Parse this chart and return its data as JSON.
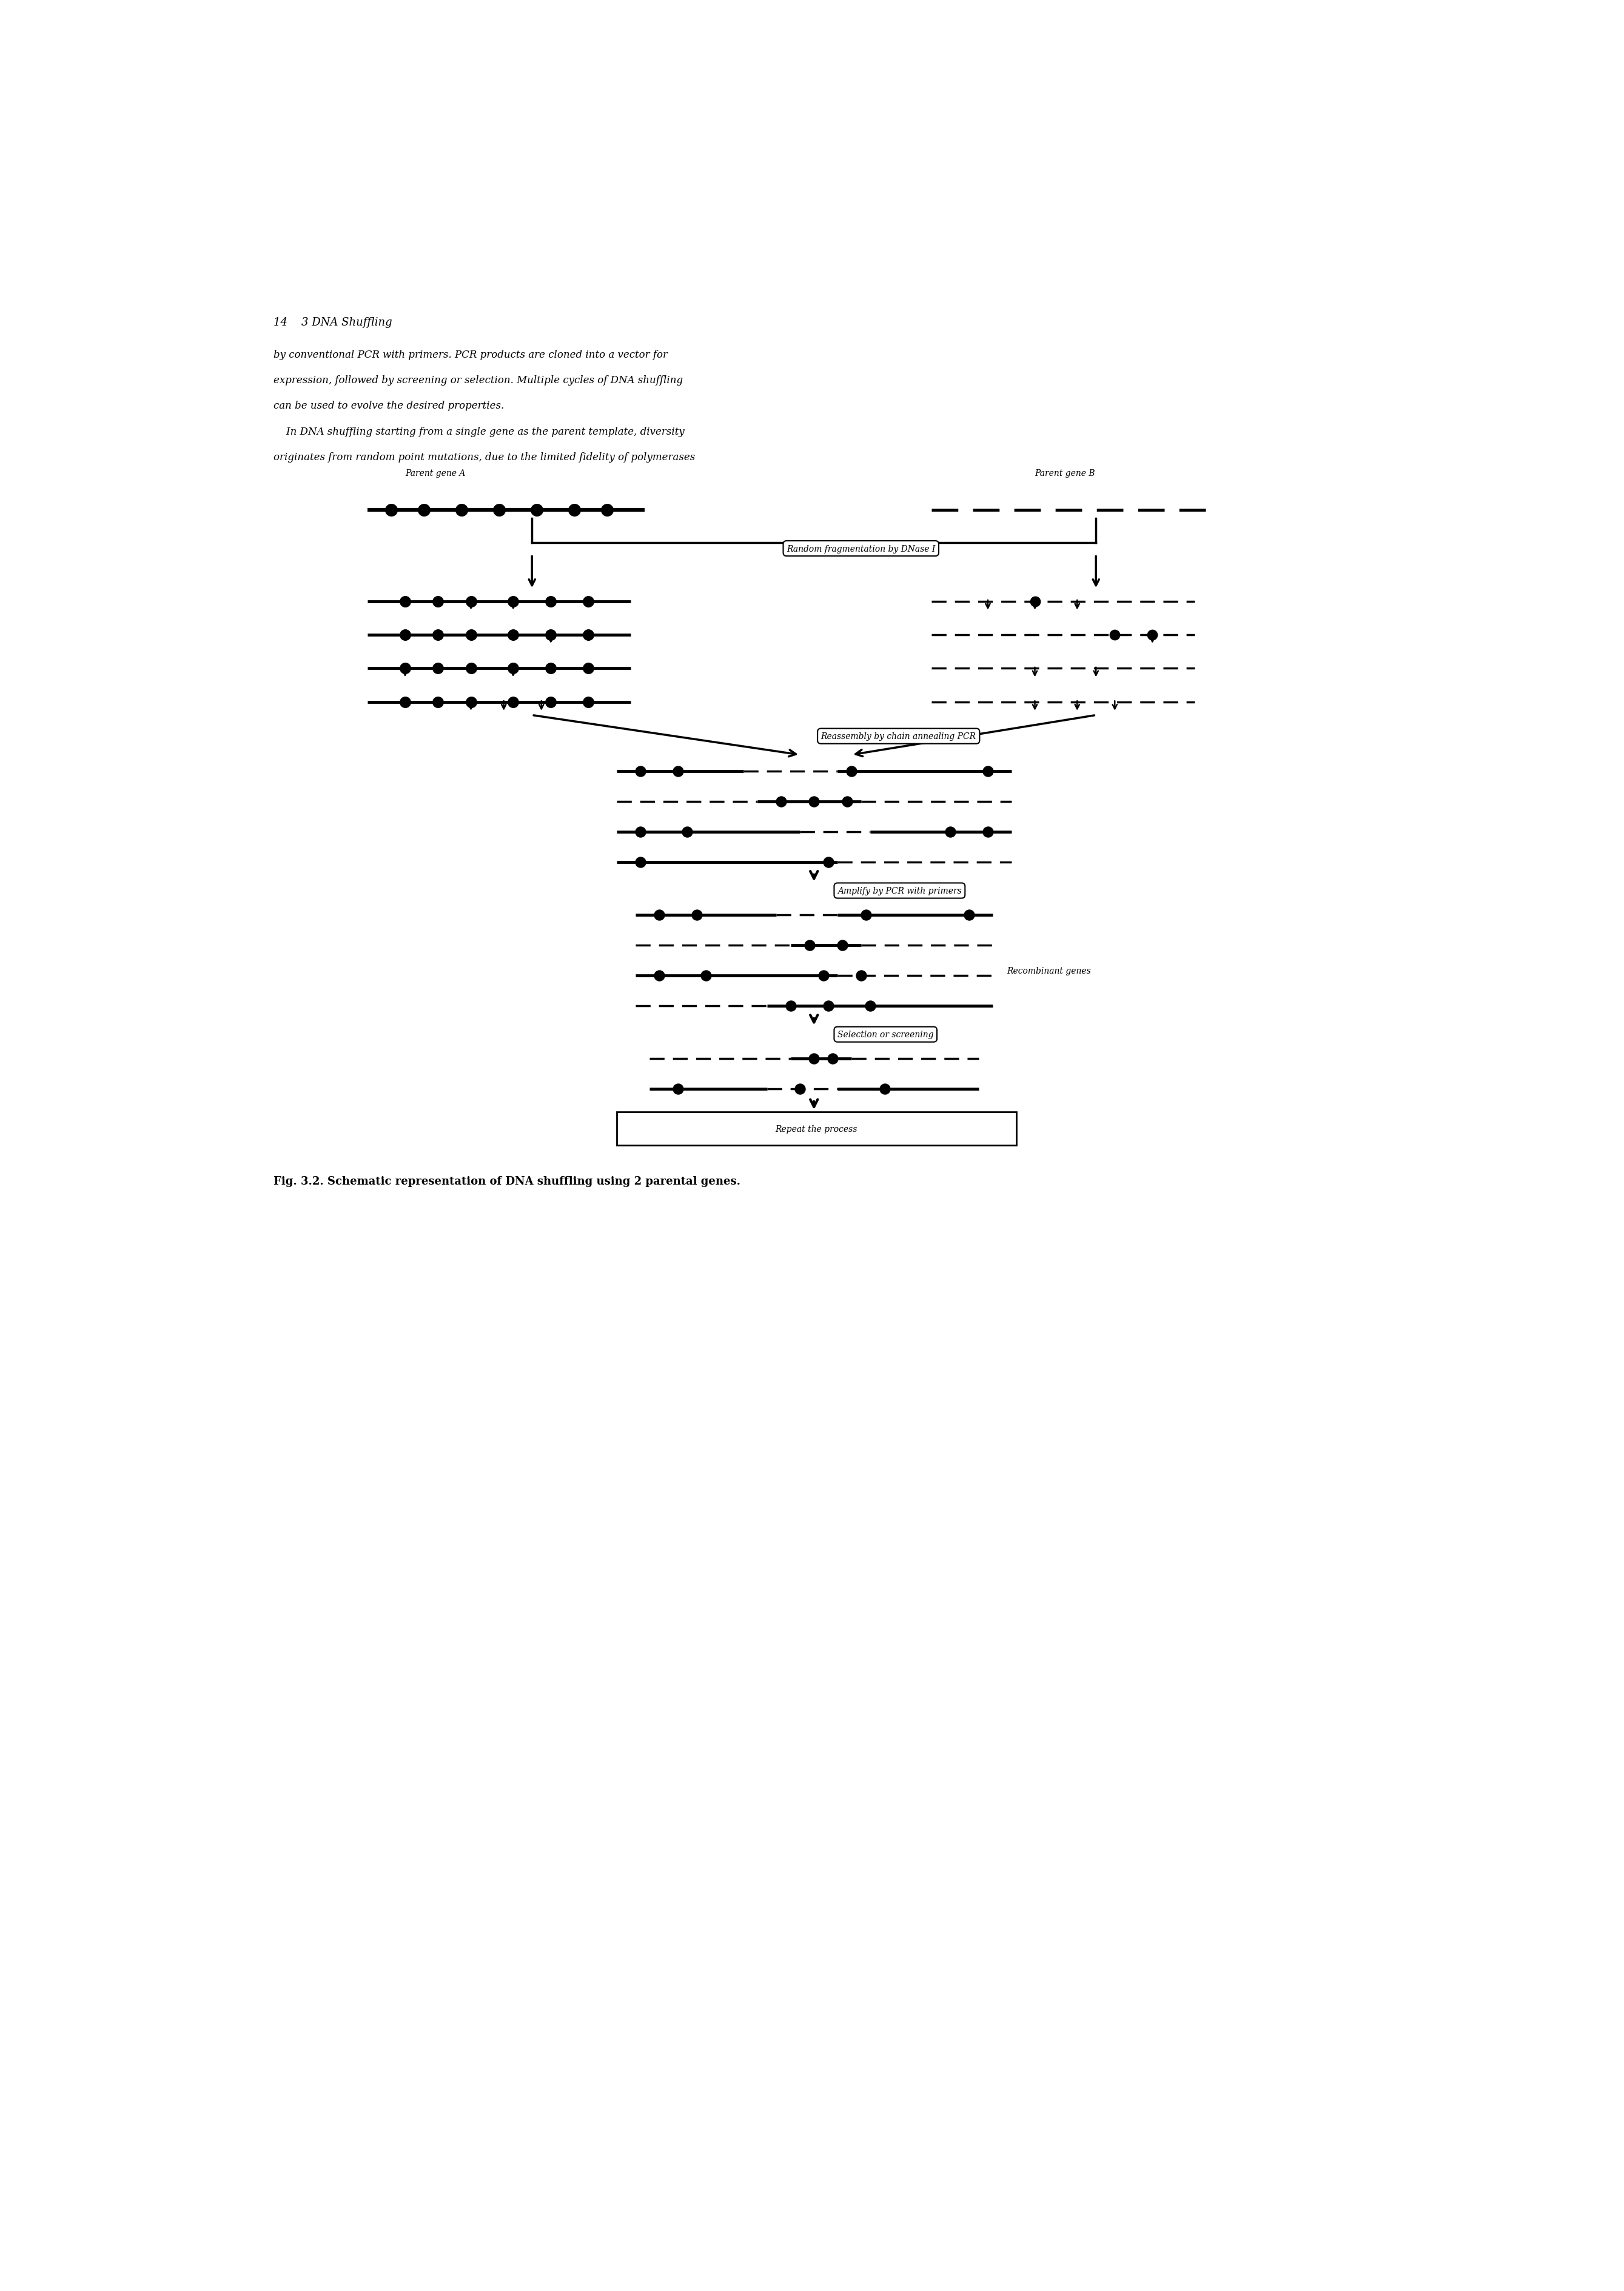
{
  "page_header": "14    3 DNA Shuffling",
  "body_text_line1": "by conventional PCR with primers. PCR products are cloned into a vector for",
  "body_text_line2": "expression, followed by screening or selection. Multiple cycles of DNA shuffling",
  "body_text_line3": "can be used to evolve the desired properties.",
  "body_text_line4": "    In DNA shuffling starting from a single gene as the parent template, diversity",
  "body_text_line5": "originates from random point mutations, due to the limited fidelity of polymerases",
  "label_A": "Parent gene A",
  "label_B": "Parent gene B",
  "step1_label": "Random fragmentation by DNase I",
  "step2_label": "Reassembly by chain annealing PCR",
  "step3_label": "Amplify by PCR with primers",
  "step3_note": "Recombinant genes",
  "step4_label": "Selection or screening",
  "step5_label": "Repeat the process",
  "fig_caption": "Fig. 3.2. Schematic representation of DNA shuffling using 2 parental genes.",
  "bg_color": "#ffffff",
  "line_color": "#000000"
}
